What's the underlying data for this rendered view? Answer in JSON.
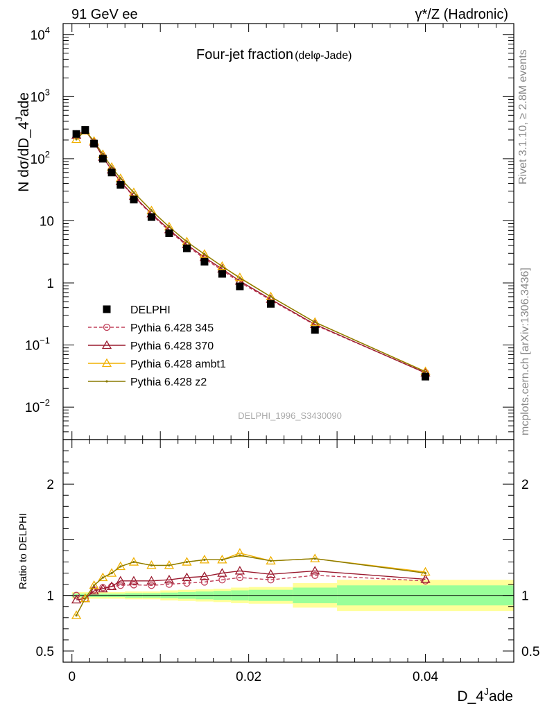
{
  "header": {
    "left": "91 GeV ee",
    "right": "γ*/Z (Hadronic)"
  },
  "plot_title": {
    "main": "Four-jet fraction",
    "sub": "(delφ-Jade)"
  },
  "watermark": "DELPHI_1996_S3430090",
  "side_labels": {
    "rivet": "Rivet 3.1.10, ≥ 2.8M events",
    "mcplots": "mcplots.cern.ch [arXiv:1306.3436]"
  },
  "chart_data": [
    {
      "type": "scatter",
      "panel": "main",
      "title": "Four-jet fraction (delφ-Jade)",
      "xlabel": "D_4^Jade",
      "ylabel": "N dσ/dD_4^Jade",
      "xlim": [
        -0.001,
        0.05
      ],
      "ylim": [
        0.003,
        15000
      ],
      "yscale": "log",
      "y_ticks": [
        {
          "value": 10000,
          "base": "10",
          "exp": "4"
        },
        {
          "value": 1000,
          "base": "10",
          "exp": "3"
        },
        {
          "value": 100,
          "base": "10",
          "exp": "2"
        },
        {
          "value": 10,
          "base": "10",
          "exp": ""
        },
        {
          "value": 1,
          "base": "1",
          "exp": ""
        },
        {
          "value": 0.1,
          "base": "10",
          "exp": "−1"
        },
        {
          "value": 0.01,
          "base": "10",
          "exp": "−2"
        }
      ],
      "legend_position": "lower-left",
      "x": [
        0.0005,
        0.0015,
        0.0025,
        0.0035,
        0.0045,
        0.0055,
        0.007,
        0.009,
        0.011,
        0.013,
        0.015,
        0.017,
        0.019,
        0.0225,
        0.0275,
        0.04
      ],
      "series": [
        {
          "name": "DELPHI",
          "color": "#000000",
          "marker": "square",
          "values": [
            250,
            290,
            175,
            100,
            60,
            38,
            22,
            11.5,
            6.3,
            3.6,
            2.2,
            1.4,
            0.88,
            0.46,
            0.175,
            0.031
          ]
        },
        {
          "name": "Pythia 6.428 345",
          "color": "#c0405a",
          "marker": "open-circle",
          "dashed": true,
          "values": [
            250,
            280,
            185,
            108,
            65,
            42,
            24.5,
            12.6,
            6.9,
            4.0,
            2.45,
            1.6,
            1.02,
            0.53,
            0.21,
            0.036
          ]
        },
        {
          "name": "Pythia 6.428 370",
          "color": "#9a1a2e",
          "marker": "open-triangle",
          "values": [
            240,
            282,
            186,
            106,
            66,
            43,
            25,
            13.0,
            7.2,
            4.15,
            2.58,
            1.68,
            1.07,
            0.545,
            0.215,
            0.0355
          ]
        },
        {
          "name": "Pythia 6.428 ambt1",
          "color": "#f0b000",
          "marker": "open-triangle",
          "values": [
            205,
            282,
            192,
            117,
            73,
            48,
            28.5,
            14.6,
            8.0,
            4.6,
            2.9,
            1.85,
            1.22,
            0.6,
            0.233,
            0.0375
          ]
        },
        {
          "name": "Pythia 6.428 z2",
          "color": "#8a7a00",
          "marker": "dot",
          "values": [
            205,
            282,
            192,
            117,
            73,
            48,
            28.5,
            14.6,
            8.0,
            4.6,
            2.9,
            1.85,
            1.2,
            0.6,
            0.233,
            0.0372
          ]
        }
      ]
    },
    {
      "type": "line",
      "panel": "ratio",
      "xlabel": "D_4^Jade",
      "ylabel": "Ratio to DELPHI",
      "xlim": [
        -0.001,
        0.05
      ],
      "ylim": [
        0.4,
        2.4
      ],
      "x_ticks": [
        {
          "value": 0,
          "label": "0"
        },
        {
          "value": 0.02,
          "label": "0.02"
        },
        {
          "value": 0.04,
          "label": "0.04"
        }
      ],
      "y_ticks": [
        {
          "value": 2,
          "label": "2"
        },
        {
          "value": 1,
          "label": "1"
        },
        {
          "value": 0.5,
          "label": "0.5"
        }
      ],
      "uncertainty_bands": [
        {
          "x0": 0.0,
          "x1": 0.001,
          "inner": [
            0.985,
            1.015
          ],
          "outer": [
            0.97,
            1.03
          ]
        },
        {
          "x0": 0.001,
          "x1": 0.002,
          "inner": [
            0.985,
            1.015
          ],
          "outer": [
            0.97,
            1.03
          ]
        },
        {
          "x0": 0.002,
          "x1": 0.003,
          "inner": [
            0.985,
            1.015
          ],
          "outer": [
            0.97,
            1.03
          ]
        },
        {
          "x0": 0.003,
          "x1": 0.004,
          "inner": [
            0.985,
            1.015
          ],
          "outer": [
            0.97,
            1.03
          ]
        },
        {
          "x0": 0.004,
          "x1": 0.005,
          "inner": [
            0.985,
            1.015
          ],
          "outer": [
            0.97,
            1.03
          ]
        },
        {
          "x0": 0.005,
          "x1": 0.006,
          "inner": [
            0.985,
            1.015
          ],
          "outer": [
            0.97,
            1.03
          ]
        },
        {
          "x0": 0.006,
          "x1": 0.008,
          "inner": [
            0.98,
            1.02
          ],
          "outer": [
            0.965,
            1.035
          ]
        },
        {
          "x0": 0.008,
          "x1": 0.01,
          "inner": [
            0.98,
            1.02
          ],
          "outer": [
            0.965,
            1.035
          ]
        },
        {
          "x0": 0.01,
          "x1": 0.012,
          "inner": [
            0.975,
            1.025
          ],
          "outer": [
            0.955,
            1.045
          ]
        },
        {
          "x0": 0.012,
          "x1": 0.014,
          "inner": [
            0.97,
            1.03
          ],
          "outer": [
            0.95,
            1.05
          ]
        },
        {
          "x0": 0.014,
          "x1": 0.016,
          "inner": [
            0.965,
            1.035
          ],
          "outer": [
            0.945,
            1.055
          ]
        },
        {
          "x0": 0.016,
          "x1": 0.018,
          "inner": [
            0.96,
            1.04
          ],
          "outer": [
            0.94,
            1.06
          ]
        },
        {
          "x0": 0.018,
          "x1": 0.02,
          "inner": [
            0.955,
            1.045
          ],
          "outer": [
            0.93,
            1.07
          ]
        },
        {
          "x0": 0.02,
          "x1": 0.025,
          "inner": [
            0.95,
            1.05
          ],
          "outer": [
            0.925,
            1.075
          ]
        },
        {
          "x0": 0.025,
          "x1": 0.03,
          "inner": [
            0.93,
            1.07
          ],
          "outer": [
            0.89,
            1.11
          ]
        },
        {
          "x0": 0.03,
          "x1": 0.05,
          "inner": [
            0.91,
            1.09
          ],
          "outer": [
            0.86,
            1.14
          ]
        }
      ],
      "series": [
        {
          "name": "Pythia 6.428 345",
          "color": "#c0405a",
          "marker": "open-circle",
          "dashed": true,
          "values": [
            1.0,
            0.97,
            1.05,
            1.07,
            1.08,
            1.09,
            1.095,
            1.09,
            1.1,
            1.11,
            1.12,
            1.14,
            1.16,
            1.14,
            1.18,
            1.13
          ]
        },
        {
          "name": "Pythia 6.428 370",
          "color": "#9a1a2e",
          "marker": "open-triangle",
          "values": [
            0.96,
            0.972,
            1.04,
            1.06,
            1.08,
            1.13,
            1.13,
            1.13,
            1.14,
            1.16,
            1.17,
            1.2,
            1.22,
            1.19,
            1.22,
            1.145
          ]
        },
        {
          "name": "Pythia 6.428 ambt1",
          "color": "#f0b000",
          "marker": "open-triangle",
          "values": [
            0.82,
            0.972,
            1.09,
            1.16,
            1.2,
            1.26,
            1.3,
            1.27,
            1.27,
            1.3,
            1.32,
            1.32,
            1.38,
            1.31,
            1.33,
            1.21
          ]
        },
        {
          "name": "Pythia 6.428 z2",
          "color": "#8a7a00",
          "marker": "dot",
          "values": [
            0.82,
            0.972,
            1.09,
            1.16,
            1.2,
            1.26,
            1.3,
            1.27,
            1.27,
            1.3,
            1.32,
            1.32,
            1.36,
            1.31,
            1.33,
            1.2
          ]
        }
      ]
    }
  ],
  "colors": {
    "band_inner": "#99ff99",
    "band_outer": "#ffff99"
  }
}
